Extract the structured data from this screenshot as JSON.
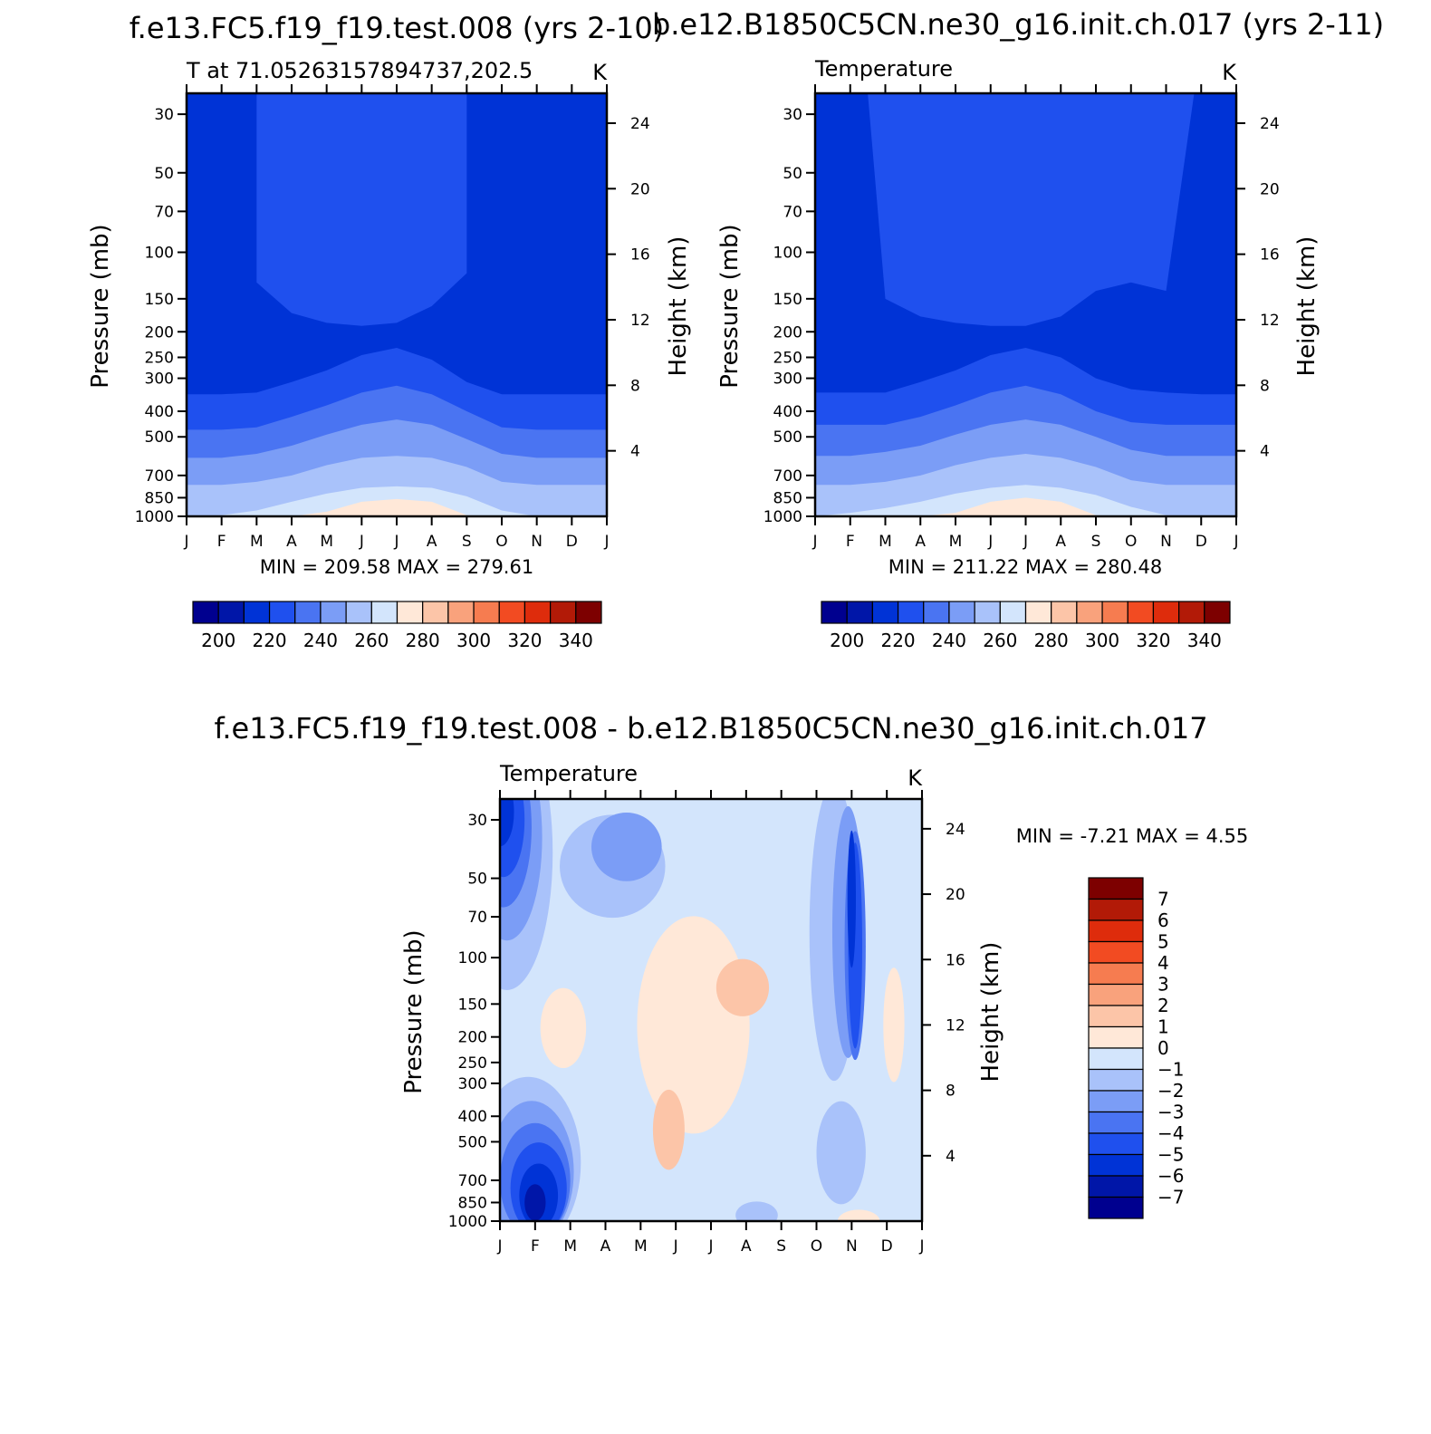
{
  "palette": {
    "temp": [
      "#00008f",
      "#0016a8",
      "#0033d6",
      "#1f50ee",
      "#4a74f2",
      "#7b9df6",
      "#a9c2fa",
      "#d3e5fc",
      "#ffe8d8",
      "#fcc5a8",
      "#f9a27c",
      "#f67c50",
      "#f24b22",
      "#de2c0c",
      "#b21a07",
      "#7d0000"
    ],
    "diff": [
      "#00008f",
      "#0016a8",
      "#0033d6",
      "#1f50ee",
      "#4a74f2",
      "#7b9df6",
      "#a9c2fa",
      "#d3e5fc",
      "#ffe8d8",
      "#fcc5a8",
      "#f9a27c",
      "#f67c50",
      "#f24b22",
      "#de2c0c",
      "#b21a07",
      "#7d0000"
    ]
  },
  "chart_data": [
    {
      "type": "heatmap",
      "panel": "case1",
      "main_title": "f.e13.FC5.f19_f19.test.008 (yrs 2-10)",
      "title_left": "T at 71.05263157894737,202.5",
      "title_right": "K",
      "xlabel": "",
      "ylabel_left": "Pressure (mb)",
      "ylabel_right": "Height (km)",
      "x_ticks": [
        "J",
        "F",
        "M",
        "A",
        "M",
        "J",
        "J",
        "A",
        "S",
        "O",
        "N",
        "D",
        "J"
      ],
      "pressure_ticks": [
        30,
        50,
        70,
        100,
        150,
        200,
        250,
        300,
        400,
        500,
        700,
        850,
        1000
      ],
      "height_ticks": [
        4,
        8,
        12,
        16,
        20,
        24
      ],
      "ylim_mb": [
        1000,
        25
      ],
      "stats": "MIN = 209.58 MAX = 279.61",
      "colorbar_labels": [
        200,
        220,
        240,
        260,
        280,
        300,
        320,
        340
      ],
      "levels": [
        195,
        200,
        210,
        220,
        230,
        240,
        250,
        260,
        270,
        280,
        290,
        300,
        310,
        320,
        330,
        340,
        345
      ],
      "upper_core_min_mb": [
        110,
        110,
        130,
        170,
        185,
        190,
        185,
        160,
        120,
        110,
        110,
        110,
        110
      ],
      "upper_core_start": 2,
      "upper_core_end": 8,
      "bands": [
        {
          "value": 225,
          "boundary_mb": [
            345,
            345,
            340,
            310,
            280,
            245,
            230,
            255,
            310,
            345,
            345,
            345,
            345
          ]
        },
        {
          "value": 235,
          "boundary_mb": [
            470,
            470,
            460,
            420,
            380,
            340,
            320,
            345,
            400,
            460,
            470,
            470,
            470
          ]
        },
        {
          "value": 245,
          "boundary_mb": [
            600,
            600,
            580,
            540,
            490,
            450,
            430,
            450,
            510,
            580,
            600,
            600,
            600
          ]
        },
        {
          "value": 255,
          "boundary_mb": [
            760,
            760,
            740,
            700,
            640,
            600,
            590,
            600,
            650,
            740,
            760,
            760,
            760
          ]
        },
        {
          "value": 265,
          "boundary_mb": [
            1000,
            990,
            950,
            880,
            820,
            780,
            770,
            780,
            840,
            950,
            1000,
            1000,
            1000
          ]
        },
        {
          "value": 275,
          "boundary_mb": [
            1000,
            1000,
            1000,
            1000,
            960,
            880,
            860,
            880,
            990,
            1000,
            1000,
            1000,
            1000
          ]
        }
      ]
    },
    {
      "type": "heatmap",
      "panel": "case2",
      "main_title": "b.e12.B1850C5CN.ne30_g16.init.ch.017 (yrs 2-11)",
      "title_left": "Temperature",
      "title_right": "K",
      "xlabel": "",
      "ylabel_left": "Pressure (mb)",
      "ylabel_right": "Height (km)",
      "x_ticks": [
        "J",
        "F",
        "M",
        "A",
        "M",
        "J",
        "J",
        "A",
        "S",
        "O",
        "N",
        "D",
        "J"
      ],
      "pressure_ticks": [
        30,
        50,
        70,
        100,
        150,
        200,
        250,
        300,
        400,
        500,
        700,
        850,
        1000
      ],
      "height_ticks": [
        4,
        8,
        12,
        16,
        20,
        24
      ],
      "ylim_mb": [
        1000,
        25
      ],
      "stats": "MIN = 211.22 MAX = 280.48",
      "colorbar_labels": [
        200,
        220,
        240,
        260,
        280,
        300,
        320,
        340
      ],
      "levels": [
        195,
        200,
        210,
        220,
        230,
        240,
        250,
        260,
        270,
        280,
        290,
        300,
        310,
        320,
        330,
        340,
        345
      ],
      "upper_core_min_mb": [
        110,
        110,
        150,
        175,
        185,
        190,
        190,
        175,
        140,
        130,
        140,
        110,
        110
      ],
      "upper_core_start": 1.5,
      "upper_core_end": 10.8,
      "bands": [
        {
          "value": 225,
          "boundary_mb": [
            340,
            340,
            340,
            310,
            280,
            245,
            230,
            250,
            300,
            330,
            340,
            345,
            345
          ]
        },
        {
          "value": 235,
          "boundary_mb": [
            450,
            450,
            450,
            420,
            380,
            340,
            320,
            345,
            400,
            440,
            450,
            450,
            450
          ]
        },
        {
          "value": 245,
          "boundary_mb": [
            590,
            590,
            570,
            540,
            490,
            450,
            430,
            450,
            500,
            560,
            590,
            590,
            590
          ]
        },
        {
          "value": 255,
          "boundary_mb": [
            760,
            760,
            740,
            700,
            640,
            600,
            580,
            600,
            650,
            730,
            760,
            760,
            760
          ]
        },
        {
          "value": 265,
          "boundary_mb": [
            1000,
            970,
            930,
            880,
            820,
            780,
            760,
            780,
            830,
            920,
            990,
            1000,
            1000
          ]
        },
        {
          "value": 275,
          "boundary_mb": [
            1000,
            1000,
            1000,
            1000,
            970,
            880,
            850,
            880,
            990,
            1000,
            1000,
            1000,
            1000
          ]
        }
      ]
    },
    {
      "type": "heatmap",
      "panel": "difference",
      "main_title": "f.e13.FC5.f19_f19.test.008 - b.e12.B1850C5CN.ne30_g16.init.ch.017",
      "title_left": "Temperature",
      "title_right": "K",
      "xlabel": "",
      "ylabel_left": "Pressure (mb)",
      "ylabel_right": "Height (km)",
      "x_ticks": [
        "J",
        "F",
        "M",
        "A",
        "M",
        "J",
        "J",
        "A",
        "S",
        "O",
        "N",
        "D",
        "J"
      ],
      "pressure_ticks": [
        30,
        50,
        70,
        100,
        150,
        200,
        250,
        300,
        400,
        500,
        700,
        850,
        1000
      ],
      "height_ticks": [
        4,
        8,
        12,
        16,
        20,
        24
      ],
      "ylim_mb": [
        1000,
        25
      ],
      "stats": "MIN = -7.21 MAX = 4.55",
      "colorbar_labels": [
        7,
        6,
        5,
        4,
        3,
        2,
        1,
        0,
        -1,
        -2,
        -3,
        -4,
        -5,
        -6,
        -7
      ],
      "levels": [
        -8,
        -7,
        -6,
        -5,
        -4,
        -3,
        -2,
        -1,
        0,
        1,
        2,
        3,
        4,
        5,
        6,
        7,
        8
      ],
      "base_value": -0.5,
      "blobs": [
        {
          "value": 0.5,
          "month": 5.5,
          "mb": 180,
          "rx": 1.6,
          "ry": 0.95
        },
        {
          "value": 0.5,
          "month": 1.8,
          "mb": 185,
          "rx": 0.65,
          "ry": 0.35
        },
        {
          "value": 0.5,
          "month": 11.2,
          "mb": 180,
          "rx": 0.3,
          "ry": 0.5
        },
        {
          "value": 1.5,
          "month": 6.9,
          "mb": 130,
          "rx": 0.75,
          "ry": 0.25
        },
        {
          "value": 1.5,
          "month": 4.8,
          "mb": 450,
          "rx": 0.45,
          "ry": 0.35
        },
        {
          "value": -1.5,
          "month": 3.2,
          "mb": 45,
          "rx": 1.5,
          "ry": 0.45
        },
        {
          "value": -2.5,
          "month": 3.6,
          "mb": 38,
          "rx": 1.0,
          "ry": 0.3
        },
        {
          "value": -1.5,
          "month": 9.5,
          "mb": 80,
          "rx": 0.7,
          "ry": 1.3
        },
        {
          "value": -2.5,
          "month": 9.9,
          "mb": 80,
          "rx": 0.45,
          "ry": 1.1
        },
        {
          "value": -3.5,
          "month": 10.1,
          "mb": 90,
          "rx": 0.3,
          "ry": 1.0
        },
        {
          "value": -4.5,
          "month": 10.1,
          "mb": 90,
          "rx": 0.2,
          "ry": 0.9
        },
        {
          "value": -5.5,
          "month": 10.0,
          "mb": 60,
          "rx": 0.12,
          "ry": 0.6
        },
        {
          "value": -1.5,
          "month": 0.2,
          "mb": 40,
          "rx": 1.3,
          "ry": 1.2
        },
        {
          "value": -2.5,
          "month": 0.2,
          "mb": 35,
          "rx": 1.0,
          "ry": 0.9
        },
        {
          "value": -3.5,
          "month": 0.1,
          "mb": 32,
          "rx": 0.8,
          "ry": 0.7
        },
        {
          "value": -4.5,
          "month": 0.1,
          "mb": 30,
          "rx": 0.6,
          "ry": 0.5
        },
        {
          "value": -5.5,
          "month": 0.0,
          "mb": 28,
          "rx": 0.4,
          "ry": 0.3
        },
        {
          "value": -1.5,
          "month": 0.8,
          "mb": 600,
          "rx": 1.5,
          "ry": 0.75
        },
        {
          "value": -2.5,
          "month": 0.9,
          "mb": 650,
          "rx": 1.2,
          "ry": 0.62
        },
        {
          "value": -3.5,
          "month": 1.0,
          "mb": 700,
          "rx": 1.0,
          "ry": 0.5
        },
        {
          "value": -4.5,
          "month": 1.1,
          "mb": 750,
          "rx": 0.8,
          "ry": 0.4
        },
        {
          "value": -5.5,
          "month": 1.1,
          "mb": 800,
          "rx": 0.55,
          "ry": 0.28
        },
        {
          "value": -6.5,
          "month": 1.0,
          "mb": 850,
          "rx": 0.3,
          "ry": 0.16
        },
        {
          "value": -1.5,
          "month": 9.7,
          "mb": 550,
          "rx": 0.7,
          "ry": 0.45
        },
        {
          "value": -1.5,
          "month": 7.3,
          "mb": 950,
          "rx": 0.6,
          "ry": 0.12
        },
        {
          "value": 0.5,
          "month": 10.2,
          "mb": 1000,
          "rx": 0.6,
          "ry": 0.1
        }
      ]
    }
  ]
}
